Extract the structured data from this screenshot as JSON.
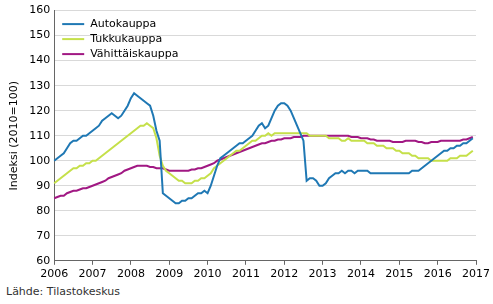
{
  "chart_data": {
    "type": "line",
    "y_label": "Indeksi (2010=100)",
    "source": "Lähde: Tilastokeskus",
    "categories": [
      "2006",
      null,
      null,
      null,
      null,
      null,
      null,
      null,
      null,
      null,
      null,
      null,
      "2007",
      null,
      null,
      null,
      null,
      null,
      null,
      null,
      null,
      null,
      null,
      null,
      "2008",
      null,
      null,
      null,
      null,
      null,
      null,
      null,
      null,
      null,
      null,
      null,
      "2009",
      null,
      null,
      null,
      null,
      null,
      null,
      null,
      null,
      null,
      null,
      null,
      "2010",
      null,
      null,
      null,
      null,
      null,
      null,
      null,
      null,
      null,
      null,
      null,
      "2011",
      null,
      null,
      null,
      null,
      null,
      null,
      null,
      null,
      null,
      null,
      null,
      "2012",
      null,
      null,
      null,
      null,
      null,
      null,
      null,
      null,
      null,
      null,
      null,
      "2013",
      null,
      null,
      null,
      null,
      null,
      null,
      null,
      null,
      null,
      null,
      null,
      "2014",
      null,
      null,
      null,
      null,
      null,
      null,
      null,
      null,
      null,
      null,
      null,
      "2015",
      null,
      null,
      null,
      null,
      null,
      null,
      null,
      null,
      null,
      null,
      null,
      "2016",
      null,
      null,
      null,
      null,
      null,
      null,
      null,
      null,
      null,
      null,
      null,
      "2017"
    ],
    "series": [
      {
        "name": "Autokauppa",
        "color": "#1f78b4",
        "values": [
          100,
          101,
          102,
          103,
          105,
          107,
          108,
          108,
          109,
          110,
          110,
          111,
          112,
          113,
          114,
          116,
          117,
          118,
          119,
          118,
          117,
          118,
          120,
          122,
          125,
          127,
          126,
          125,
          124,
          123,
          122,
          118,
          112,
          108,
          87,
          86,
          85,
          84,
          83,
          83,
          84,
          84,
          85,
          85,
          86,
          87,
          87,
          88,
          87,
          90,
          94,
          98,
          101,
          102,
          103,
          104,
          105,
          106,
          107,
          107,
          108,
          109,
          110,
          112,
          114,
          115,
          113,
          114,
          117,
          120,
          122,
          123,
          123,
          122,
          120,
          117,
          114,
          111,
          108,
          92,
          93,
          93,
          92,
          90,
          90,
          91,
          93,
          94,
          95,
          95,
          96,
          95,
          96,
          96,
          95,
          96,
          96,
          96,
          96,
          95,
          95,
          95,
          95,
          95,
          95,
          95,
          95,
          95,
          95,
          95,
          95,
          95,
          96,
          96,
          96,
          97,
          98,
          99,
          100,
          101,
          102,
          103,
          104,
          104,
          105,
          105,
          106,
          106,
          107,
          107,
          108,
          109,
          null
        ]
      },
      {
        "name": "Tukkukauppa",
        "color": "#c5e04a",
        "values": [
          91,
          92,
          93,
          94,
          95,
          96,
          97,
          97,
          98,
          98,
          99,
          99,
          100,
          100,
          101,
          102,
          103,
          104,
          105,
          106,
          107,
          108,
          109,
          110,
          111,
          112,
          113,
          114,
          114,
          115,
          114,
          113,
          109,
          102,
          98,
          96,
          95,
          94,
          93,
          92,
          92,
          91,
          91,
          91,
          92,
          92,
          93,
          93,
          94,
          95,
          97,
          98,
          99,
          100,
          101,
          102,
          103,
          104,
          104,
          105,
          106,
          107,
          108,
          108,
          109,
          110,
          110,
          111,
          110,
          111,
          111,
          111,
          111,
          111,
          111,
          111,
          111,
          111,
          111,
          111,
          110,
          110,
          110,
          110,
          110,
          110,
          109,
          109,
          109,
          109,
          108,
          108,
          109,
          108,
          108,
          108,
          108,
          108,
          107,
          107,
          107,
          106,
          106,
          106,
          105,
          105,
          105,
          104,
          104,
          103,
          103,
          103,
          102,
          102,
          101,
          101,
          101,
          101,
          100,
          100,
          100,
          100,
          100,
          100,
          101,
          101,
          101,
          102,
          102,
          102,
          103,
          104,
          null
        ]
      },
      {
        "name": "Vähittäiskauppa",
        "color": "#a11883",
        "values": [
          85,
          85.5,
          86,
          86,
          87,
          87.5,
          88,
          88,
          88.5,
          89,
          89,
          89.5,
          90,
          90.5,
          91,
          91.5,
          92,
          93,
          93.5,
          94,
          94.5,
          95,
          96,
          96.5,
          97,
          97.5,
          98,
          98,
          98,
          98,
          97.5,
          97.5,
          97,
          97,
          97,
          96.5,
          96,
          96,
          96,
          96,
          96,
          96,
          96,
          96.5,
          96.5,
          97,
          97,
          97.5,
          98,
          98.5,
          99,
          100,
          100.5,
          101,
          101.5,
          102,
          102.5,
          103,
          103.5,
          104,
          104.5,
          105,
          105.5,
          106,
          106.5,
          107,
          107,
          107.5,
          108,
          108,
          108.5,
          108.5,
          109,
          109,
          109,
          109.5,
          109.5,
          109.5,
          110,
          110,
          110,
          110,
          110,
          110,
          110,
          110,
          110,
          110,
          110,
          110,
          110,
          110,
          110,
          109.5,
          109.5,
          109.5,
          109,
          109,
          109,
          108.5,
          108.5,
          108,
          108,
          108,
          108,
          108,
          107.5,
          107.5,
          107.5,
          107.5,
          108,
          108,
          108,
          108,
          107.5,
          107.5,
          107,
          107,
          107.5,
          107.5,
          107.5,
          108,
          108,
          108,
          108,
          108,
          108,
          108,
          108.5,
          108.5,
          109,
          109.5,
          null
        ]
      }
    ],
    "ylim": [
      60,
      160
    ],
    "yticks": [
      60,
      70,
      80,
      90,
      100,
      110,
      120,
      130,
      140,
      150,
      160
    ],
    "grid": true,
    "legend": "top-left"
  }
}
